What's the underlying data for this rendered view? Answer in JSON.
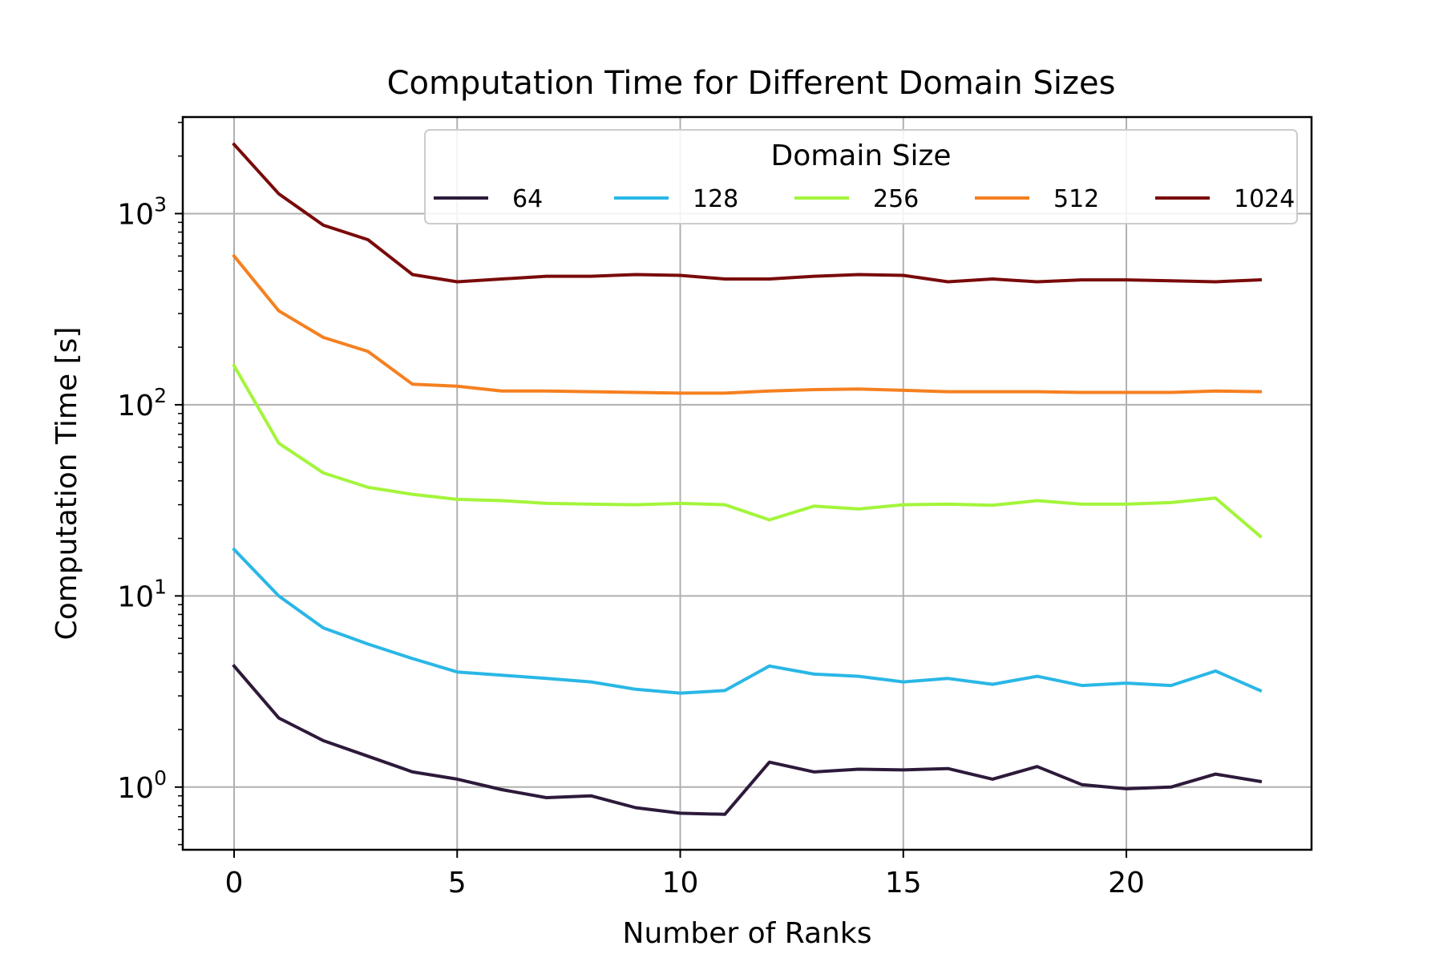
{
  "chart_data": {
    "type": "line",
    "title": "Computation Time for Different Domain Sizes",
    "xlabel": "Number of Ranks",
    "ylabel": "Computation Time [s]",
    "xlim": [
      -1.15,
      24.15
    ],
    "ylim": [
      0.47,
      3200
    ],
    "yscale": "log",
    "grid": true,
    "x_ticks": [
      0,
      5,
      10,
      15,
      20
    ],
    "x_tick_labels": [
      "0",
      "5",
      "10",
      "15",
      "20"
    ],
    "y_ticks": [
      1,
      10,
      100,
      1000
    ],
    "y_tick_labels": [
      {
        "base": "10",
        "exp": "0"
      },
      {
        "base": "10",
        "exp": "1"
      },
      {
        "base": "10",
        "exp": "2"
      },
      {
        "base": "10",
        "exp": "3"
      }
    ],
    "legend": {
      "title": "Domain Size",
      "position": "top-right",
      "columns": 5
    },
    "x": [
      0,
      1,
      2,
      3,
      4,
      5,
      6,
      7,
      8,
      9,
      10,
      11,
      12,
      13,
      14,
      15,
      16,
      17,
      18,
      19,
      20,
      21,
      22,
      23
    ],
    "series": [
      {
        "name": "64",
        "color": "#2d1a3a",
        "values": [
          4.3,
          2.3,
          1.75,
          1.45,
          1.2,
          1.1,
          0.97,
          0.88,
          0.9,
          0.78,
          0.73,
          0.72,
          1.35,
          1.2,
          1.24,
          1.23,
          1.25,
          1.1,
          1.28,
          1.03,
          0.98,
          1.0,
          1.17,
          1.07
        ]
      },
      {
        "name": "128",
        "color": "#2ab7e6",
        "values": [
          17.5,
          10.0,
          6.8,
          5.6,
          4.7,
          4.0,
          3.85,
          3.7,
          3.55,
          3.25,
          3.1,
          3.2,
          4.3,
          3.9,
          3.8,
          3.55,
          3.7,
          3.45,
          3.8,
          3.4,
          3.5,
          3.4,
          4.05,
          3.2
        ]
      },
      {
        "name": "256",
        "color": "#a3f53b",
        "values": [
          160,
          63,
          44,
          37,
          34,
          32,
          31.5,
          30.5,
          30.2,
          30,
          30.5,
          30,
          25,
          29.5,
          28.5,
          30,
          30.2,
          29.8,
          31.5,
          30.2,
          30.2,
          30.8,
          32.5,
          20.5
        ]
      },
      {
        "name": "512",
        "color": "#f58020",
        "values": [
          600,
          310,
          225,
          190,
          128,
          125,
          118,
          118,
          117,
          116,
          115,
          115,
          118,
          120,
          121,
          119,
          117,
          117,
          117,
          116,
          116,
          116,
          118,
          117
        ]
      },
      {
        "name": "1024",
        "color": "#7a0a0a",
        "values": [
          2300,
          1270,
          870,
          730,
          480,
          440,
          455,
          470,
          470,
          480,
          475,
          455,
          455,
          470,
          480,
          475,
          440,
          455,
          440,
          450,
          450,
          445,
          440,
          450
        ]
      }
    ]
  }
}
